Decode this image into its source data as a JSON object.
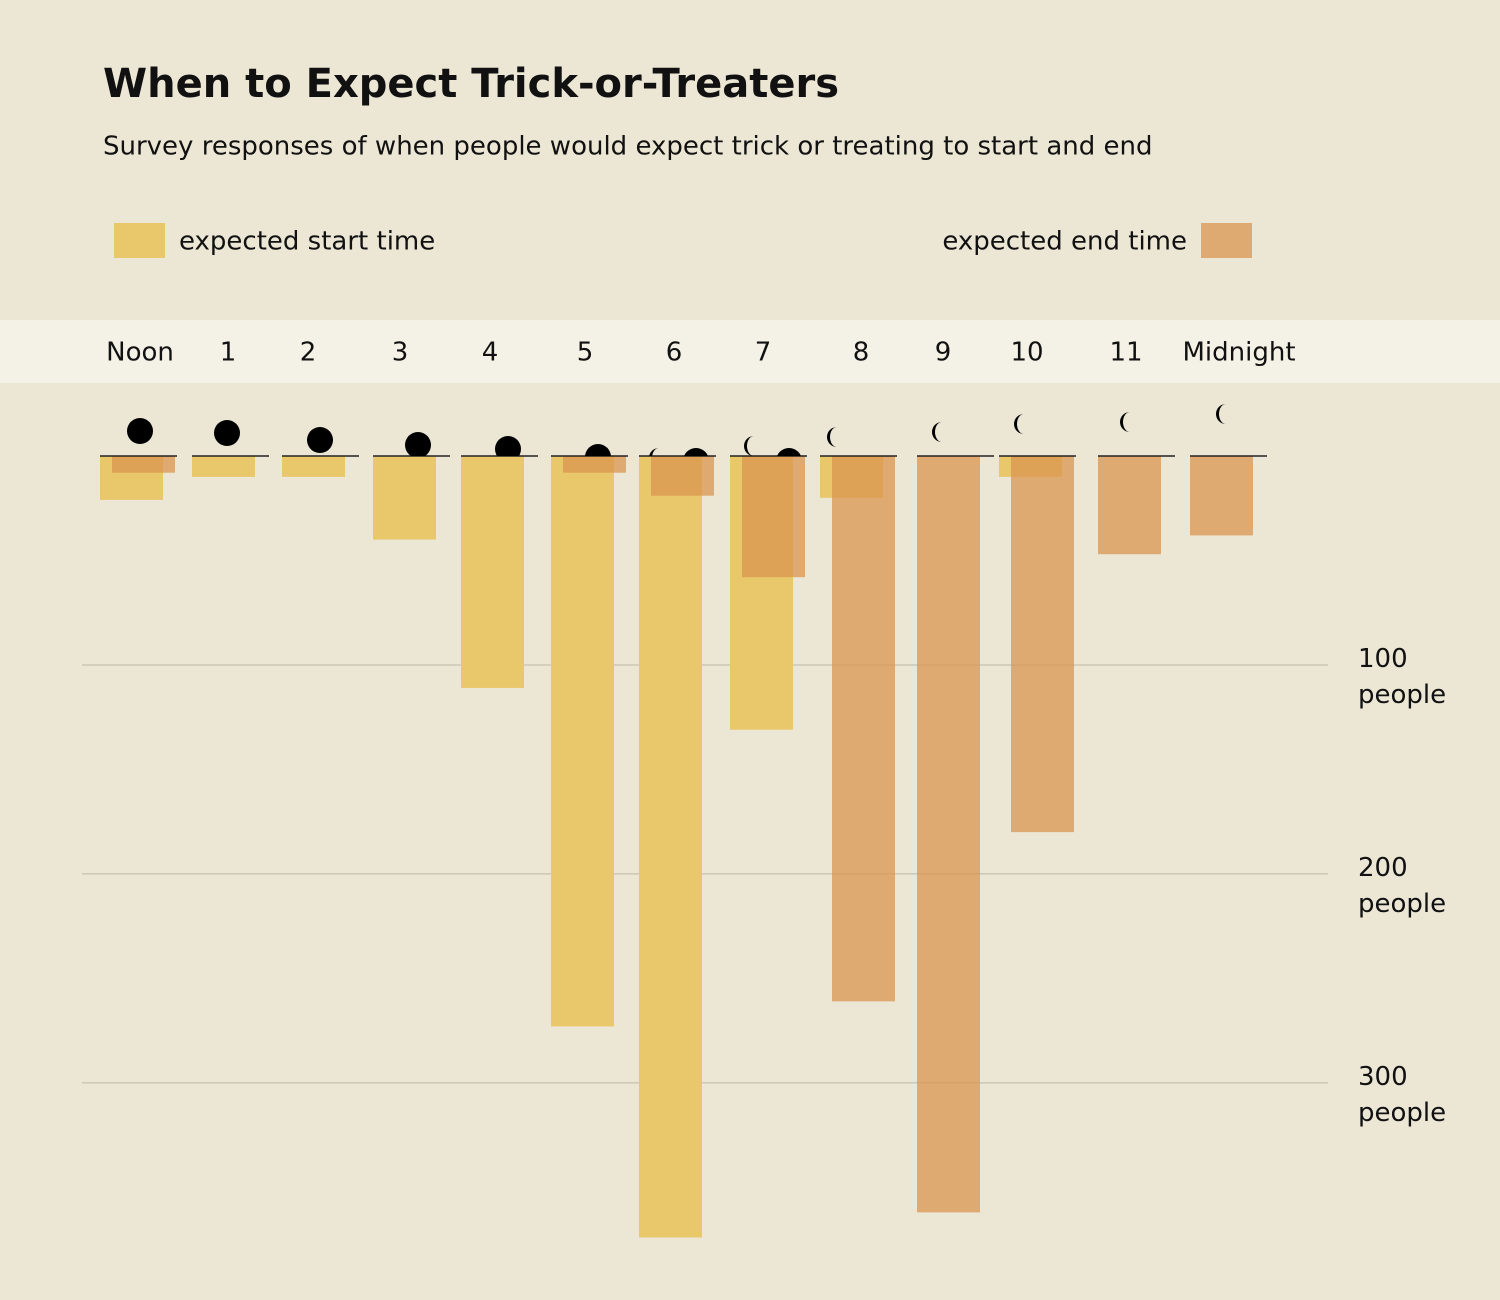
{
  "chart_data": {
    "type": "bar",
    "title": "When to Expect Trick-or-Treaters",
    "subtitle": "Survey responses of when people would expect trick or treating to start and end",
    "categories": [
      "Noon",
      "1",
      "2",
      "3",
      "4",
      "5",
      "6",
      "7",
      "8",
      "9",
      "10",
      "11",
      "Midnight"
    ],
    "series": [
      {
        "name": "expected start time",
        "color": "#e9c76b",
        "values": [
          21,
          10,
          10,
          40,
          111,
          273,
          374,
          131,
          20,
          0,
          10,
          0,
          0
        ]
      },
      {
        "name": "expected end time",
        "color": "#d9954f",
        "values": [
          8,
          0,
          0,
          0,
          0,
          8,
          19,
          58,
          261,
          362,
          180,
          47,
          38
        ]
      }
    ],
    "ylim": [
      0,
      380
    ],
    "yticks": [
      {
        "value": 100,
        "label": "100 people"
      },
      {
        "value": 200,
        "label": "200 people"
      },
      {
        "value": 300,
        "label": "300 people"
      }
    ],
    "grid": true
  }
}
